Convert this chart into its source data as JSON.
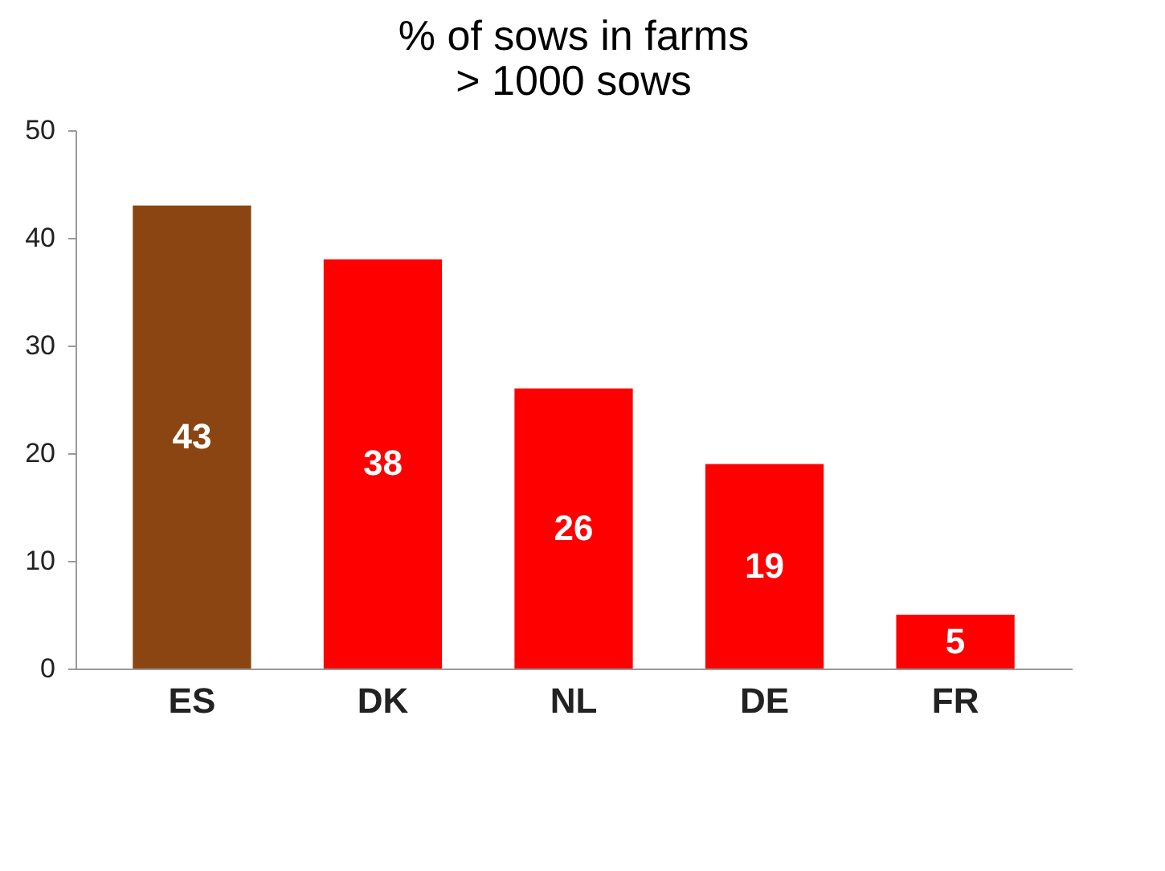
{
  "chart_data": {
    "type": "bar",
    "title": "% of sows in farms\n> 1000 sows",
    "categories": [
      "ES",
      "DK",
      "NL",
      "DE",
      "FR"
    ],
    "values": [
      43,
      38,
      26,
      19,
      5
    ],
    "colors": [
      "#8b4513",
      "#ff0000",
      "#ff0000",
      "#ff0000",
      "#ff0000"
    ],
    "ylim": [
      0,
      50
    ],
    "yticks": [
      0,
      10,
      20,
      30,
      40,
      50
    ],
    "grid": false,
    "data_labels": true
  }
}
